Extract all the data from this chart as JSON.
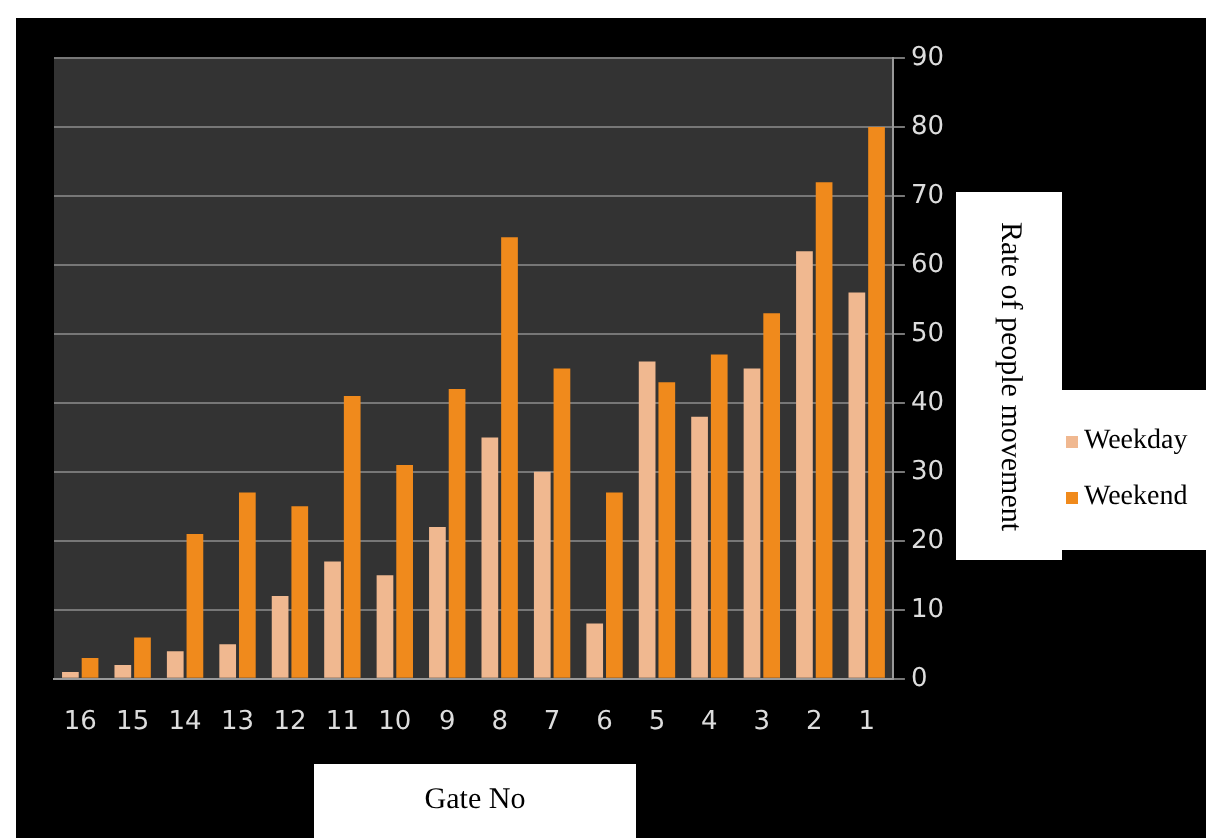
{
  "chart_data": {
    "type": "bar",
    "xlabel": "Gate No",
    "ylabel": "Rate of people movement",
    "categories": [
      "16",
      "15",
      "14",
      "13",
      "12",
      "11",
      "10",
      "9",
      "8",
      "7",
      "6",
      "5",
      "4",
      "3",
      "2",
      "1"
    ],
    "series": [
      {
        "name": "Weekday",
        "color": "#f0b890",
        "values": [
          1,
          2,
          4,
          5,
          12,
          17,
          15,
          22,
          35,
          30,
          8,
          46,
          38,
          45,
          62,
          56
        ]
      },
      {
        "name": "Weekend",
        "color": "#f08a1c",
        "values": [
          3,
          6,
          21,
          27,
          25,
          41,
          31,
          42,
          64,
          45,
          27,
          43,
          47,
          53,
          72,
          80
        ]
      }
    ],
    "ylim": [
      0,
      90
    ],
    "yticks": [
      0,
      10,
      20,
      30,
      40,
      50,
      60,
      70,
      80,
      90
    ],
    "grid": "y",
    "legend": "right"
  }
}
